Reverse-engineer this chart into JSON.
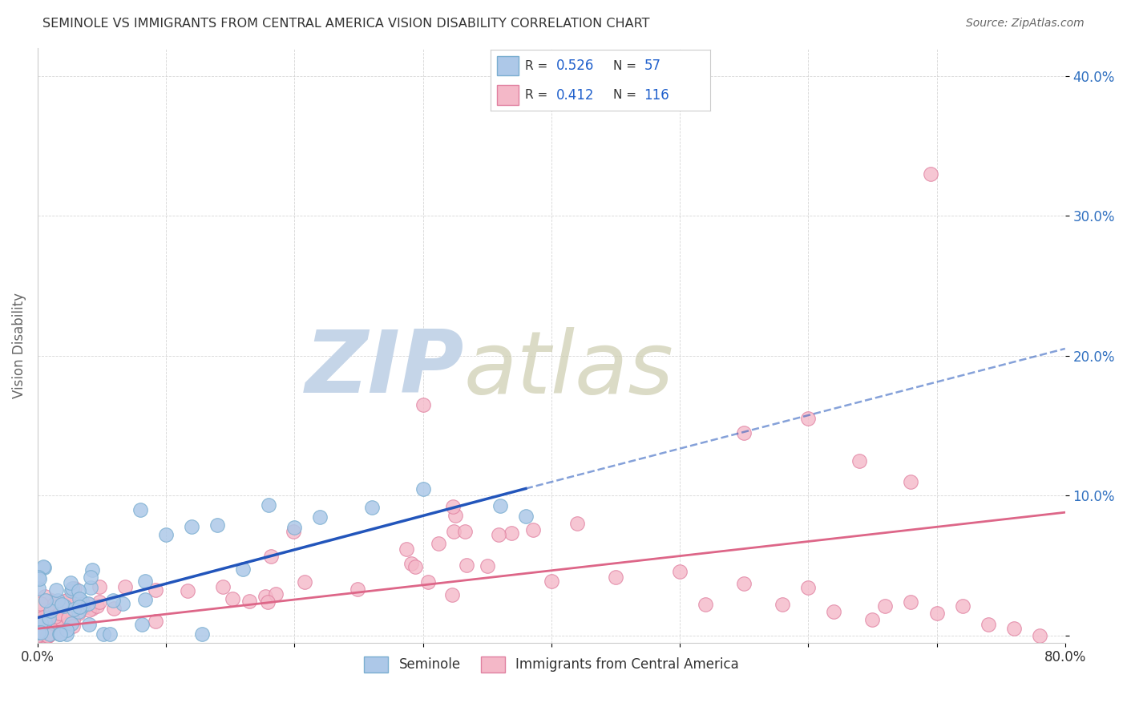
{
  "title": "SEMINOLE VS IMMIGRANTS FROM CENTRAL AMERICA VISION DISABILITY CORRELATION CHART",
  "source": "Source: ZipAtlas.com",
  "ylabel": "Vision Disability",
  "xlim": [
    0.0,
    0.8
  ],
  "ylim": [
    -0.005,
    0.42
  ],
  "xticks": [
    0.0,
    0.1,
    0.2,
    0.3,
    0.4,
    0.5,
    0.6,
    0.7,
    0.8
  ],
  "xticklabels": [
    "0.0%",
    "",
    "",
    "",
    "",
    "",
    "",
    "",
    "80.0%"
  ],
  "yticks": [
    0.0,
    0.1,
    0.2,
    0.3,
    0.4
  ],
  "yticklabels": [
    "",
    "10.0%",
    "20.0%",
    "30.0%",
    "40.0%"
  ],
  "background_color": "#ffffff",
  "grid_color": "#cccccc",
  "series1_color": "#adc8e8",
  "series1_edge_color": "#7aaed0",
  "series2_color": "#f4b8c8",
  "series2_edge_color": "#e080a0",
  "line1_color": "#2255bb",
  "line2_color": "#dd6688",
  "legend_R1": "0.526",
  "legend_N1": "57",
  "legend_R2": "0.412",
  "legend_N2": "116",
  "legend_label1": "Seminole",
  "legend_label2": "Immigrants from Central America",
  "line1_x_start": 0.001,
  "line1_x_end": 0.38,
  "line1_y_start": 0.013,
  "line1_y_end": 0.105,
  "line1_dash_x_end": 0.8,
  "line1_dash_y_end": 0.205,
  "line2_x_start": 0.001,
  "line2_x_end": 0.8,
  "line2_y_start": 0.005,
  "line2_y_end": 0.088
}
